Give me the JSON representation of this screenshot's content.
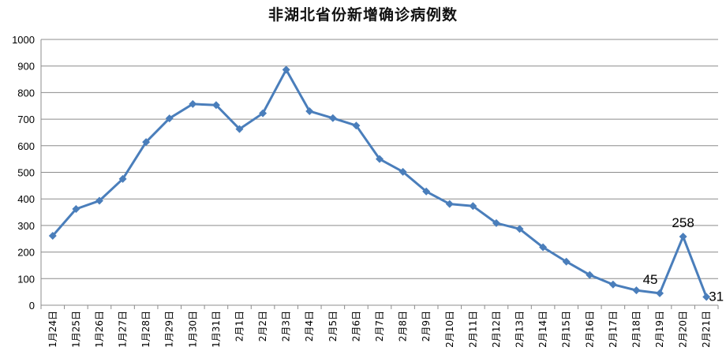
{
  "chart_data": {
    "type": "line",
    "title": "非湖北省份新增确诊病例数",
    "xlabel": "",
    "ylabel": "",
    "ylim": [
      0,
      1000
    ],
    "yticks": [
      0,
      100,
      200,
      300,
      400,
      500,
      600,
      700,
      800,
      900,
      1000
    ],
    "grid": true,
    "legend": "none",
    "line_color": "#4A7EBB",
    "categories": [
      "1月24日",
      "1月25日",
      "1月26日",
      "1月27日",
      "1月28日",
      "1月29日",
      "1月30日",
      "1月31日",
      "2月1日",
      "2月2日",
      "2月3日",
      "2月4日",
      "2月5日",
      "2月6日",
      "2月7日",
      "2月8日",
      "2月9日",
      "2月10日",
      "2月11日",
      "2月12日",
      "2月13日",
      "2月14日",
      "2月15日",
      "2月16日",
      "2月17日",
      "2月18日",
      "2月19日",
      "2月20日",
      "2月21日"
    ],
    "series": [
      {
        "name": "",
        "values": [
          261,
          362,
          393,
          475,
          614,
          703,
          757,
          753,
          663,
          722,
          886,
          730,
          704,
          676,
          550,
          502,
          428,
          381,
          373,
          309,
          287,
          218,
          164,
          114,
          78,
          56,
          45,
          258,
          31
        ]
      }
    ],
    "data_labels": [
      {
        "index": 26,
        "text": "45"
      },
      {
        "index": 27,
        "text": "258"
      },
      {
        "index": 28,
        "text": "31"
      }
    ]
  }
}
